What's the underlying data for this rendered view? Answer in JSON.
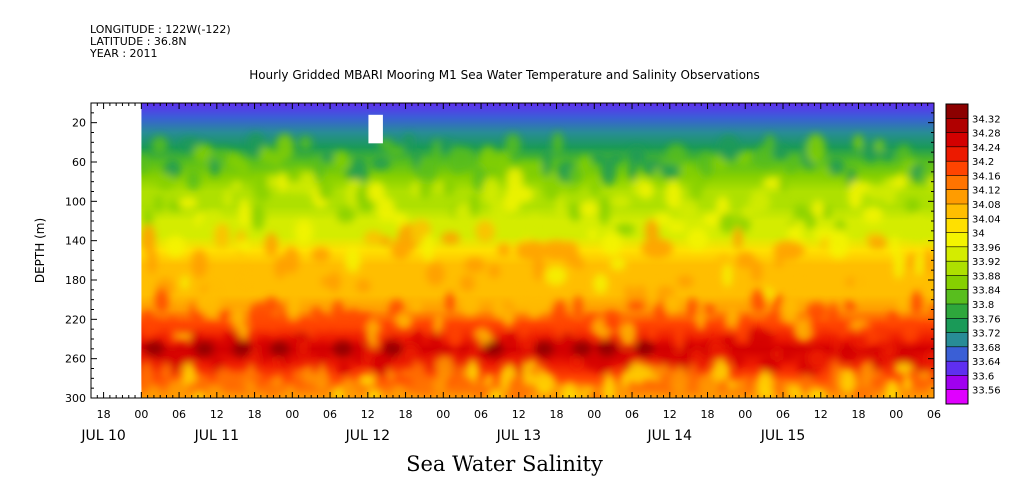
{
  "header": {
    "longitude": "LONGITUDE : 122W(-122)",
    "latitude": "LATITUDE : 36.8N",
    "year": "YEAR : 2011"
  },
  "chart_data": {
    "type": "heatmap",
    "title": "Hourly Gridded MBARI Mooring M1 Sea Water Temperature and Salinity Observations",
    "xlabel": "Sea Water Salinity",
    "ylabel": "DEPTH (m)",
    "x_hours_range": [
      -8,
      126
    ],
    "data_start_hour": 0,
    "ylim": [
      300,
      0
    ],
    "y_ticks": [
      20,
      60,
      100,
      140,
      180,
      220,
      260,
      300
    ],
    "x_hour_ticks": [
      {
        "h": -6,
        "label": "18"
      },
      {
        "h": 0,
        "label": "00"
      },
      {
        "h": 6,
        "label": "06"
      },
      {
        "h": 12,
        "label": "12"
      },
      {
        "h": 18,
        "label": "18"
      },
      {
        "h": 24,
        "label": "00"
      },
      {
        "h": 30,
        "label": "06"
      },
      {
        "h": 36,
        "label": "12"
      },
      {
        "h": 42,
        "label": "18"
      },
      {
        "h": 48,
        "label": "00"
      },
      {
        "h": 54,
        "label": "06"
      },
      {
        "h": 60,
        "label": "12"
      },
      {
        "h": 66,
        "label": "18"
      },
      {
        "h": 72,
        "label": "00"
      },
      {
        "h": 78,
        "label": "06"
      },
      {
        "h": 84,
        "label": "12"
      },
      {
        "h": 90,
        "label": "18"
      },
      {
        "h": 96,
        "label": "00"
      },
      {
        "h": 102,
        "label": "06"
      },
      {
        "h": 108,
        "label": "12"
      },
      {
        "h": 114,
        "label": "18"
      },
      {
        "h": 120,
        "label": "00"
      },
      {
        "h": 126,
        "label": "06"
      }
    ],
    "day_labels": [
      {
        "h": -6,
        "label": "JUL 10"
      },
      {
        "h": 12,
        "label": "JUL 11"
      },
      {
        "h": 36,
        "label": "JUL 12"
      },
      {
        "h": 60,
        "label": "JUL 13"
      },
      {
        "h": 84,
        "label": "JUL 14"
      },
      {
        "h": 102,
        "label": "JUL 15"
      }
    ],
    "depth_profile": [
      {
        "depth": 0,
        "value": 33.68
      },
      {
        "depth": 15,
        "value": 33.69
      },
      {
        "depth": 30,
        "value": 33.74
      },
      {
        "depth": 45,
        "value": 33.8
      },
      {
        "depth": 60,
        "value": 33.84
      },
      {
        "depth": 75,
        "value": 33.92
      },
      {
        "depth": 90,
        "value": 33.95
      },
      {
        "depth": 105,
        "value": 33.96
      },
      {
        "depth": 120,
        "value": 33.98
      },
      {
        "depth": 135,
        "value": 34.0
      },
      {
        "depth": 150,
        "value": 34.06
      },
      {
        "depth": 165,
        "value": 34.09
      },
      {
        "depth": 180,
        "value": 34.1
      },
      {
        "depth": 195,
        "value": 34.12
      },
      {
        "depth": 210,
        "value": 34.16
      },
      {
        "depth": 225,
        "value": 34.2
      },
      {
        "depth": 240,
        "value": 34.26
      },
      {
        "depth": 250,
        "value": 34.3
      },
      {
        "depth": 265,
        "value": 34.26
      },
      {
        "depth": 280,
        "value": 34.2
      },
      {
        "depth": 300,
        "value": 34.16
      }
    ],
    "colorbar": {
      "labels": [
        "34.32",
        "34.28",
        "34.24",
        "34.2",
        "34.16",
        "34.12",
        "34.08",
        "34.04",
        "34",
        "33.96",
        "33.92",
        "33.88",
        "33.84",
        "33.8",
        "33.76",
        "33.72",
        "33.68",
        "33.64",
        "33.6",
        "33.56"
      ],
      "colors": [
        "#8c0000",
        "#b00000",
        "#d30000",
        "#ec1a00",
        "#ff4400",
        "#ff7400",
        "#ff9c00",
        "#ffbe00",
        "#ffe000",
        "#f4f400",
        "#d4ec00",
        "#aee000",
        "#86d000",
        "#58be1e",
        "#2ea73c",
        "#1a9a58",
        "#288c96",
        "#3a5fd6",
        "#5f2ff0",
        "#a000f0",
        "#e000ff"
      ]
    }
  }
}
